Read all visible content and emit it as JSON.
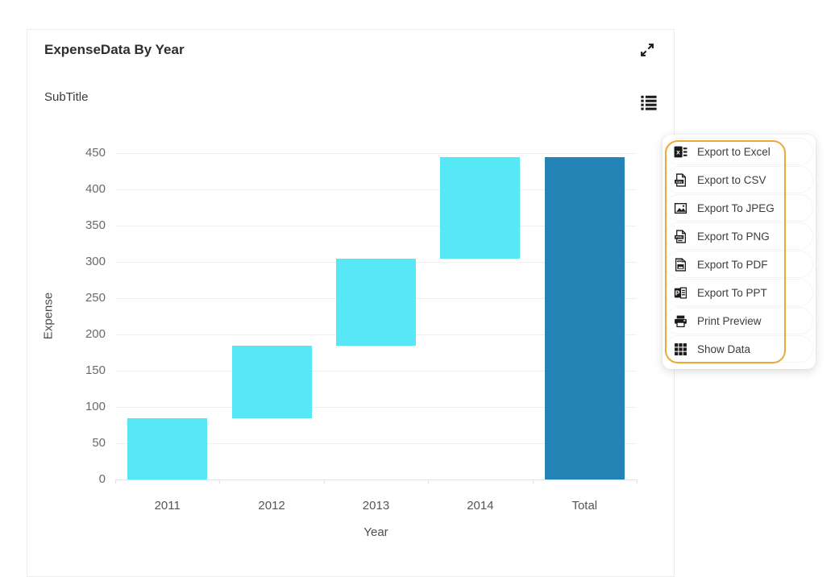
{
  "widget": {
    "title": "ExpenseData By Year",
    "subtitle": "SubTitle"
  },
  "toolbar": {
    "maximize_icon": "expand-arrows-icon",
    "menu_icon": "list-menu-icon"
  },
  "menu": {
    "highlight_color": "#EBA93C",
    "items": [
      {
        "icon": "excel-icon",
        "label": "Export to Excel"
      },
      {
        "icon": "csv-icon",
        "label": "Export to CSV"
      },
      {
        "icon": "jpeg-icon",
        "label": "Export To JPEG"
      },
      {
        "icon": "png-icon",
        "label": "Export To PNG"
      },
      {
        "icon": "pdf-icon",
        "label": "Export To PDF"
      },
      {
        "icon": "ppt-icon",
        "label": "Export To PPT"
      },
      {
        "icon": "print-icon",
        "label": "Print Preview"
      },
      {
        "icon": "grid-icon",
        "label": "Show Data"
      }
    ]
  },
  "chart_data": {
    "type": "bar",
    "subtype": "waterfall",
    "title": "ExpenseData By Year",
    "subtitle": "SubTitle",
    "xlabel": "Year",
    "ylabel": "Expense",
    "categories": [
      "2011",
      "2012",
      "2013",
      "2014",
      "Total"
    ],
    "series": [
      {
        "name": "Expense",
        "deltas": [
          85,
          100,
          120,
          140
        ],
        "cumulative": [
          85,
          185,
          305,
          445
        ],
        "total": 445,
        "segments": [
          [
            0,
            85
          ],
          [
            85,
            185
          ],
          [
            185,
            305
          ],
          [
            305,
            445
          ],
          [
            0,
            445
          ]
        ]
      }
    ],
    "ylim": [
      0,
      450
    ],
    "ytick_step": 50,
    "yticks": [
      0,
      50,
      100,
      150,
      200,
      250,
      300,
      350,
      400,
      450
    ],
    "grid": "horizontal",
    "legend": "none",
    "colors": {
      "delta_bar": "#57E8F5",
      "total_bar": "#2283B4",
      "gridline": "#EFEFEF",
      "axis_text": "#6A6A6A"
    }
  }
}
